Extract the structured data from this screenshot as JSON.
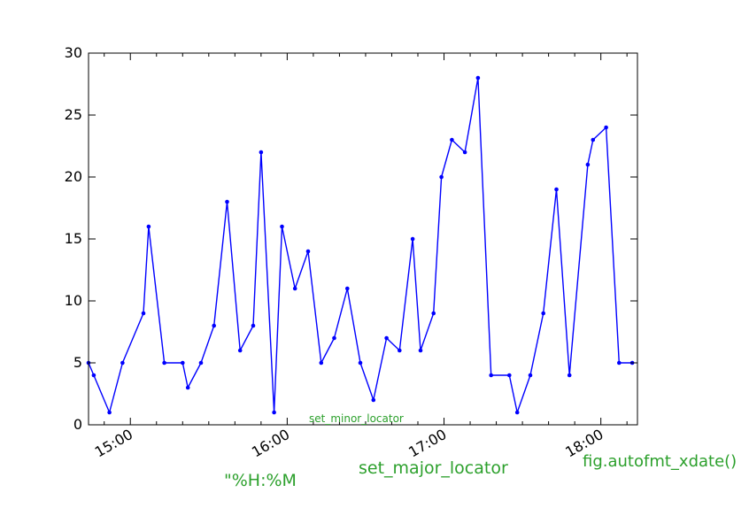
{
  "chart_data": {
    "type": "line",
    "series": [
      {
        "color": "#0000ff",
        "x": [
          "14:44",
          "14:46",
          "14:52",
          "14:57",
          "15:05",
          "15:07",
          "15:13",
          "15:20",
          "15:22",
          "15:27",
          "15:32",
          "15:37",
          "15:42",
          "15:47",
          "15:50",
          "15:55",
          "15:58",
          "16:03",
          "16:08",
          "16:13",
          "16:18",
          "16:23",
          "16:28",
          "16:33",
          "16:38",
          "16:43",
          "16:48",
          "16:51",
          "16:56",
          "16:59",
          "17:03",
          "17:08",
          "17:13",
          "17:18",
          "17:25",
          "17:28",
          "17:33",
          "17:38",
          "17:43",
          "17:48",
          "17:55",
          "17:57",
          "18:02",
          "18:07",
          "18:12"
        ],
        "values": [
          5,
          4,
          1,
          5,
          9,
          16,
          5,
          5,
          3,
          5,
          8,
          18,
          6,
          8,
          22,
          1,
          16,
          11,
          14,
          5,
          7,
          11,
          5,
          2,
          7,
          6,
          15,
          6,
          9,
          20,
          23,
          22,
          28,
          4,
          4,
          1,
          4,
          9,
          19,
          4,
          21,
          23,
          24,
          5,
          5
        ]
      }
    ],
    "xlim": [
      "14:44",
      "18:14"
    ],
    "ylim": [
      0,
      30
    ],
    "yticks": [
      0,
      5,
      10,
      15,
      20,
      25,
      30
    ],
    "xticks": [
      "15:00",
      "16:00",
      "17:00",
      "18:00"
    ],
    "grid": false
  },
  "annotations": {
    "minor_locator": "set_minor_locator",
    "major_locator": "set_major_locator",
    "date_format": "\"%H:%M",
    "autofmt": "fig.autofmt_xdate()"
  }
}
